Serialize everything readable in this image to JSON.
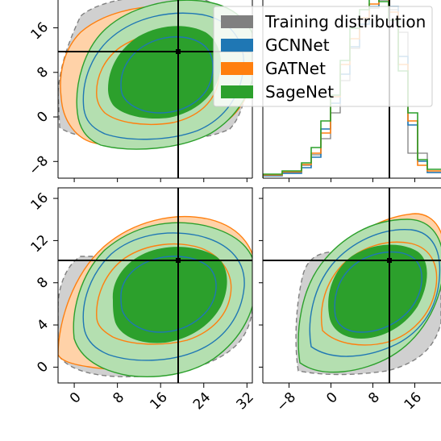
{
  "colors": {
    "training": "#808080",
    "gcnnet": "#1f77b4",
    "gatnet": "#ff7f0e",
    "sagenet": "#2ca02c",
    "training_fill": "#d0d0d0",
    "gatnet_fill": "#ffd2a8",
    "sagenet_fill_light": "#b4dfb0",
    "sagenet_fill_dark": "#2ca02c"
  },
  "legend": {
    "placement": "top-right of top-left panel",
    "items": [
      {
        "label": "Training distribution",
        "color": "#808080",
        "marker": "filled-square"
      },
      {
        "label": "GCNNet",
        "color": "#1f77b4",
        "marker": "filled-square"
      },
      {
        "label": "GATNet",
        "color": "#ff7f0e",
        "marker": "filled-square"
      },
      {
        "label": "SageNet",
        "color": "#2ca02c",
        "marker": "filled-square"
      }
    ]
  },
  "chart_data": [
    {
      "panel": "top-left",
      "type": "contour",
      "ylim": [
        -11,
        21
      ],
      "xlim": [
        -3,
        33
      ],
      "y_ticks": [
        "−8",
        "0",
        "8",
        "16"
      ],
      "y_tick_values": [
        -8,
        0,
        8,
        16
      ],
      "target_point": {
        "x": 19,
        "y": 11
      },
      "series": [
        {
          "name": "Training distribution",
          "levels": [
            "outer (dashed)",
            "filled"
          ]
        },
        {
          "name": "GATNet",
          "levels": [
            "outer filled",
            "inner line"
          ]
        },
        {
          "name": "GCNNet",
          "levels": [
            "outer line",
            "inner line"
          ]
        },
        {
          "name": "SageNet",
          "levels": [
            "outer filled",
            "inner filled"
          ]
        }
      ]
    },
    {
      "panel": "top-right",
      "type": "histogram",
      "xlim": [
        -13,
        21
      ],
      "target_x": 11,
      "series": [
        {
          "name": "Training distribution",
          "style": "step"
        },
        {
          "name": "GCNNet",
          "style": "step"
        },
        {
          "name": "GATNet",
          "style": "step"
        },
        {
          "name": "SageNet",
          "style": "step"
        }
      ]
    },
    {
      "panel": "bottom-left",
      "type": "contour",
      "xlim": [
        -3,
        33
      ],
      "ylim": [
        -1.5,
        17
      ],
      "x_ticks": [
        "0",
        "8",
        "16",
        "24",
        "32"
      ],
      "x_tick_values": [
        0,
        8,
        16,
        24,
        32
      ],
      "y_ticks": [
        "0",
        "4",
        "8",
        "12",
        "16"
      ],
      "y_tick_values": [
        0,
        4,
        8,
        12,
        16
      ],
      "target_point": {
        "x": 19,
        "y": 10
      }
    },
    {
      "panel": "bottom-right",
      "type": "contour",
      "xlim": [
        -13,
        21
      ],
      "ylim": [
        -1.5,
        17
      ],
      "x_ticks": [
        "−8",
        "0",
        "8",
        "16"
      ],
      "x_tick_values": [
        -8,
        0,
        8,
        16
      ],
      "target_point": {
        "x": 11,
        "y": 10
      }
    }
  ]
}
